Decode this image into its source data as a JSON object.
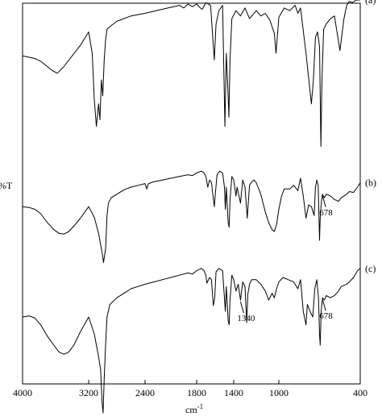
{
  "chart_data": {
    "type": "line",
    "xlabel": "cm-1",
    "ylabel": "%T",
    "xlim": [
      4000,
      400
    ],
    "x_reversed": true,
    "grid": false,
    "xticks": [
      4000,
      3200,
      2400,
      1800,
      1400,
      1000,
      400
    ],
    "xtick_labels": [
      "4000",
      "3200",
      "2400",
      "1800",
      "1400",
      "1000",
      "400"
    ],
    "series": [
      {
        "name": "(a)",
        "points": [
          [
            4000,
            58
          ],
          [
            3920,
            57
          ],
          [
            3850,
            56
          ],
          [
            3780,
            54
          ],
          [
            3700,
            50
          ],
          [
            3640,
            47
          ],
          [
            3580,
            45
          ],
          [
            3500,
            50
          ],
          [
            3400,
            58
          ],
          [
            3300,
            66
          ],
          [
            3200,
            76
          ],
          [
            3150,
            60
          ],
          [
            3120,
            25
          ],
          [
            3090,
            5
          ],
          [
            3060,
            22
          ],
          [
            3040,
            10
          ],
          [
            3020,
            40
          ],
          [
            3000,
            28
          ],
          [
            2980,
            55
          ],
          [
            2960,
            70
          ],
          [
            2940,
            78
          ],
          [
            2900,
            80
          ],
          [
            2800,
            84
          ],
          [
            2600,
            88
          ],
          [
            2400,
            90
          ],
          [
            2200,
            93
          ],
          [
            2000,
            96
          ],
          [
            1950,
            94
          ],
          [
            1900,
            97
          ],
          [
            1850,
            95
          ],
          [
            1800,
            97
          ],
          [
            1760,
            94
          ],
          [
            1740,
            93
          ],
          [
            1700,
            98
          ],
          [
            1650,
            96
          ],
          [
            1610,
            55
          ],
          [
            1590,
            82
          ],
          [
            1560,
            92
          ],
          [
            1520,
            96
          ],
          [
            1495,
            5
          ],
          [
            1480,
            60
          ],
          [
            1460,
            28
          ],
          [
            1452,
            12
          ],
          [
            1440,
            55
          ],
          [
            1420,
            86
          ],
          [
            1380,
            92
          ],
          [
            1340,
            88
          ],
          [
            1300,
            94
          ],
          [
            1260,
            86
          ],
          [
            1200,
            92
          ],
          [
            1160,
            88
          ],
          [
            1120,
            90
          ],
          [
            1080,
            85
          ],
          [
            1040,
            75
          ],
          [
            1025,
            60
          ],
          [
            1000,
            87
          ],
          [
            960,
            94
          ],
          [
            920,
            92
          ],
          [
            880,
            96
          ],
          [
            860,
            90
          ],
          [
            840,
            94
          ],
          [
            800,
            60
          ],
          [
            760,
            22
          ],
          [
            745,
            40
          ],
          [
            730,
            72
          ],
          [
            715,
            76
          ],
          [
            700,
            65
          ],
          [
            690,
            -10
          ],
          [
            682,
            40
          ],
          [
            670,
            78
          ],
          [
            650,
            82
          ],
          [
            620,
            86
          ],
          [
            590,
            88
          ],
          [
            565,
            72
          ],
          [
            550,
            62
          ],
          [
            535,
            74
          ],
          [
            520,
            86
          ],
          [
            500,
            96
          ],
          [
            480,
            99
          ],
          [
            460,
            98
          ],
          [
            430,
            100
          ],
          [
            400,
            100
          ]
        ]
      },
      {
        "name": "(b)",
        "points": [
          [
            4000,
            58
          ],
          [
            3920,
            57
          ],
          [
            3850,
            55
          ],
          [
            3780,
            50
          ],
          [
            3700,
            40
          ],
          [
            3620,
            32
          ],
          [
            3560,
            28
          ],
          [
            3500,
            27
          ],
          [
            3440,
            30
          ],
          [
            3380,
            36
          ],
          [
            3300,
            45
          ],
          [
            3200,
            58
          ],
          [
            3120,
            46
          ],
          [
            3060,
            28
          ],
          [
            3030,
            15
          ],
          [
            3000,
            2
          ],
          [
            2990,
            -5
          ],
          [
            2960,
            10
          ],
          [
            2940,
            48
          ],
          [
            2920,
            62
          ],
          [
            2880,
            68
          ],
          [
            2800,
            72
          ],
          [
            2700,
            77
          ],
          [
            2600,
            80
          ],
          [
            2500,
            82
          ],
          [
            2400,
            84
          ],
          [
            2380,
            78
          ],
          [
            2360,
            84
          ],
          [
            2300,
            86
          ],
          [
            2200,
            88
          ],
          [
            2100,
            90
          ],
          [
            2000,
            92
          ],
          [
            1900,
            94
          ],
          [
            1850,
            93
          ],
          [
            1800,
            96
          ],
          [
            1750,
            98
          ],
          [
            1720,
            96
          ],
          [
            1700,
            92
          ],
          [
            1680,
            80
          ],
          [
            1660,
            88
          ],
          [
            1640,
            85
          ],
          [
            1610,
            58
          ],
          [
            1600,
            70
          ],
          [
            1580,
            94
          ],
          [
            1550,
            98
          ],
          [
            1520,
            96
          ],
          [
            1500,
            80
          ],
          [
            1490,
            55
          ],
          [
            1480,
            80
          ],
          [
            1460,
            40
          ],
          [
            1450,
            35
          ],
          [
            1440,
            65
          ],
          [
            1420,
            92
          ],
          [
            1400,
            88
          ],
          [
            1380,
            70
          ],
          [
            1370,
            80
          ],
          [
            1340,
            62
          ],
          [
            1320,
            88
          ],
          [
            1300,
            80
          ],
          [
            1280,
            45
          ],
          [
            1260,
            82
          ],
          [
            1240,
            86
          ],
          [
            1220,
            88
          ],
          [
            1200,
            85
          ],
          [
            1160,
            72
          ],
          [
            1120,
            52
          ],
          [
            1090,
            40
          ],
          [
            1060,
            32
          ],
          [
            1040,
            30
          ],
          [
            1020,
            38
          ],
          [
            1000,
            55
          ],
          [
            980,
            70
          ],
          [
            960,
            78
          ],
          [
            920,
            78
          ],
          [
            890,
            82
          ],
          [
            860,
            76
          ],
          [
            840,
            90
          ],
          [
            820,
            70
          ],
          [
            800,
            45
          ],
          [
            780,
            60
          ],
          [
            760,
            58
          ],
          [
            740,
            48
          ],
          [
            730,
            80
          ],
          [
            720,
            88
          ],
          [
            710,
            82
          ],
          [
            700,
            20
          ],
          [
            695,
            45
          ],
          [
            685,
            65
          ],
          [
            678,
            72
          ],
          [
            665,
            68
          ],
          [
            650,
            72
          ],
          [
            620,
            70
          ],
          [
            590,
            66
          ],
          [
            560,
            64
          ],
          [
            540,
            68
          ],
          [
            500,
            72
          ],
          [
            480,
            75
          ],
          [
            450,
            74
          ],
          [
            420,
            80
          ],
          [
            400,
            85
          ]
        ]
      },
      {
        "name": "(c)",
        "points": [
          [
            4000,
            55
          ],
          [
            3920,
            56
          ],
          [
            3850,
            54
          ],
          [
            3780,
            48
          ],
          [
            3700,
            38
          ],
          [
            3620,
            30
          ],
          [
            3560,
            24
          ],
          [
            3500,
            22
          ],
          [
            3440,
            24
          ],
          [
            3380,
            30
          ],
          [
            3300,
            42
          ],
          [
            3200,
            55
          ],
          [
            3120,
            40
          ],
          [
            3060,
            20
          ],
          [
            3030,
            8
          ],
          [
            3010,
            -20
          ],
          [
            2995,
            -30
          ],
          [
            2980,
            0
          ],
          [
            2960,
            30
          ],
          [
            2940,
            55
          ],
          [
            2900,
            66
          ],
          [
            2800,
            72
          ],
          [
            2700,
            76
          ],
          [
            2600,
            80
          ],
          [
            2500,
            82
          ],
          [
            2400,
            84
          ],
          [
            2300,
            86
          ],
          [
            2200,
            88
          ],
          [
            2100,
            90
          ],
          [
            2000,
            92
          ],
          [
            1900,
            94
          ],
          [
            1850,
            93
          ],
          [
            1800,
            96
          ],
          [
            1750,
            98
          ],
          [
            1720,
            96
          ],
          [
            1700,
            92
          ],
          [
            1690,
            85
          ],
          [
            1660,
            90
          ],
          [
            1640,
            88
          ],
          [
            1620,
            65
          ],
          [
            1605,
            72
          ],
          [
            1590,
            95
          ],
          [
            1560,
            98
          ],
          [
            1520,
            96
          ],
          [
            1505,
            78
          ],
          [
            1490,
            60
          ],
          [
            1480,
            82
          ],
          [
            1460,
            52
          ],
          [
            1450,
            48
          ],
          [
            1440,
            70
          ],
          [
            1420,
            92
          ],
          [
            1400,
            88
          ],
          [
            1380,
            78
          ],
          [
            1360,
            84
          ],
          [
            1340,
            70
          ],
          [
            1320,
            86
          ],
          [
            1300,
            82
          ],
          [
            1285,
            50
          ],
          [
            1275,
            75
          ],
          [
            1260,
            84
          ],
          [
            1240,
            88
          ],
          [
            1200,
            88
          ],
          [
            1160,
            84
          ],
          [
            1120,
            78
          ],
          [
            1090,
            70
          ],
          [
            1060,
            76
          ],
          [
            1040,
            72
          ],
          [
            1020,
            80
          ],
          [
            1000,
            86
          ],
          [
            970,
            90
          ],
          [
            930,
            88
          ],
          [
            890,
            86
          ],
          [
            860,
            80
          ],
          [
            840,
            88
          ],
          [
            820,
            60
          ],
          [
            800,
            48
          ],
          [
            790,
            66
          ],
          [
            770,
            60
          ],
          [
            750,
            55
          ],
          [
            735,
            80
          ],
          [
            720,
            88
          ],
          [
            708,
            72
          ],
          [
            700,
            40
          ],
          [
            695,
            30
          ],
          [
            688,
            60
          ],
          [
            678,
            72
          ],
          [
            665,
            70
          ],
          [
            650,
            74
          ],
          [
            620,
            72
          ],
          [
            590,
            74
          ],
          [
            560,
            78
          ],
          [
            540,
            82
          ],
          [
            500,
            84
          ],
          [
            480,
            86
          ],
          [
            450,
            90
          ],
          [
            420,
            96
          ],
          [
            400,
            98
          ]
        ]
      }
    ],
    "annotations": [
      {
        "series": "(b)",
        "x": 678,
        "label": "678"
      },
      {
        "series": "(c)",
        "x": 1340,
        "label": "1340"
      },
      {
        "series": "(c)",
        "x": 678,
        "label": "678"
      }
    ]
  }
}
